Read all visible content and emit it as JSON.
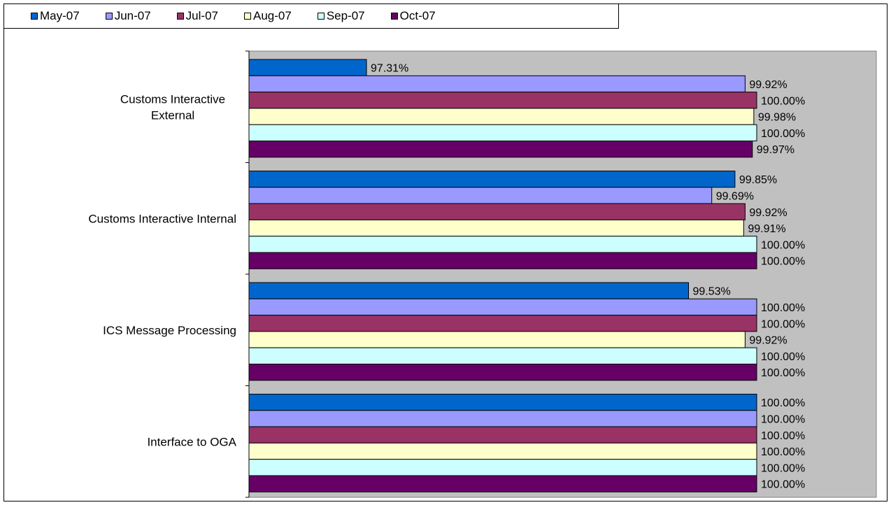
{
  "chart_data": {
    "type": "bar",
    "orientation": "horizontal",
    "categories": [
      "Customs Interactive External",
      "Customs Interactive Internal",
      "ICS Message Processing",
      "Interface to OGA"
    ],
    "series": [
      {
        "name": "May-07",
        "color": "#0066CC",
        "values": [
          97.31,
          99.85,
          99.53,
          100.0
        ],
        "labels": [
          "97.31%",
          "99.85%",
          "99.53%",
          "100.00%"
        ]
      },
      {
        "name": "Jun-07",
        "color": "#9999FF",
        "values": [
          99.92,
          99.69,
          100.0,
          100.0
        ],
        "labels": [
          "99.92%",
          "99.69%",
          "100.00%",
          "100.00%"
        ]
      },
      {
        "name": "Jul-07",
        "color": "#993366",
        "values": [
          100.0,
          99.92,
          100.0,
          100.0
        ],
        "labels": [
          "100.00%",
          "99.92%",
          "100.00%",
          "100.00%"
        ]
      },
      {
        "name": "Aug-07",
        "color": "#FFFFCC",
        "values": [
          99.98,
          99.91,
          99.92,
          100.0
        ],
        "labels": [
          "99.98%",
          "99.91%",
          "99.92%",
          "100.00%"
        ]
      },
      {
        "name": "Sep-07",
        "color": "#CCFFFF",
        "values": [
          100.0,
          100.0,
          100.0,
          100.0
        ],
        "labels": [
          "100.00%",
          "100.00%",
          "100.00%",
          "100.00%"
        ]
      },
      {
        "name": "Oct-07",
        "color": "#660066",
        "values": [
          99.97,
          100.0,
          100.0,
          100.0
        ],
        "labels": [
          "99.97%",
          "100.00%",
          "100.00%",
          "100.00%"
        ]
      }
    ],
    "xlim": [
      96.5,
      100.0
    ],
    "plot_background": "#C0C0C0",
    "legend_position": "top",
    "grid": false,
    "title": "",
    "xlabel": "",
    "ylabel": ""
  }
}
